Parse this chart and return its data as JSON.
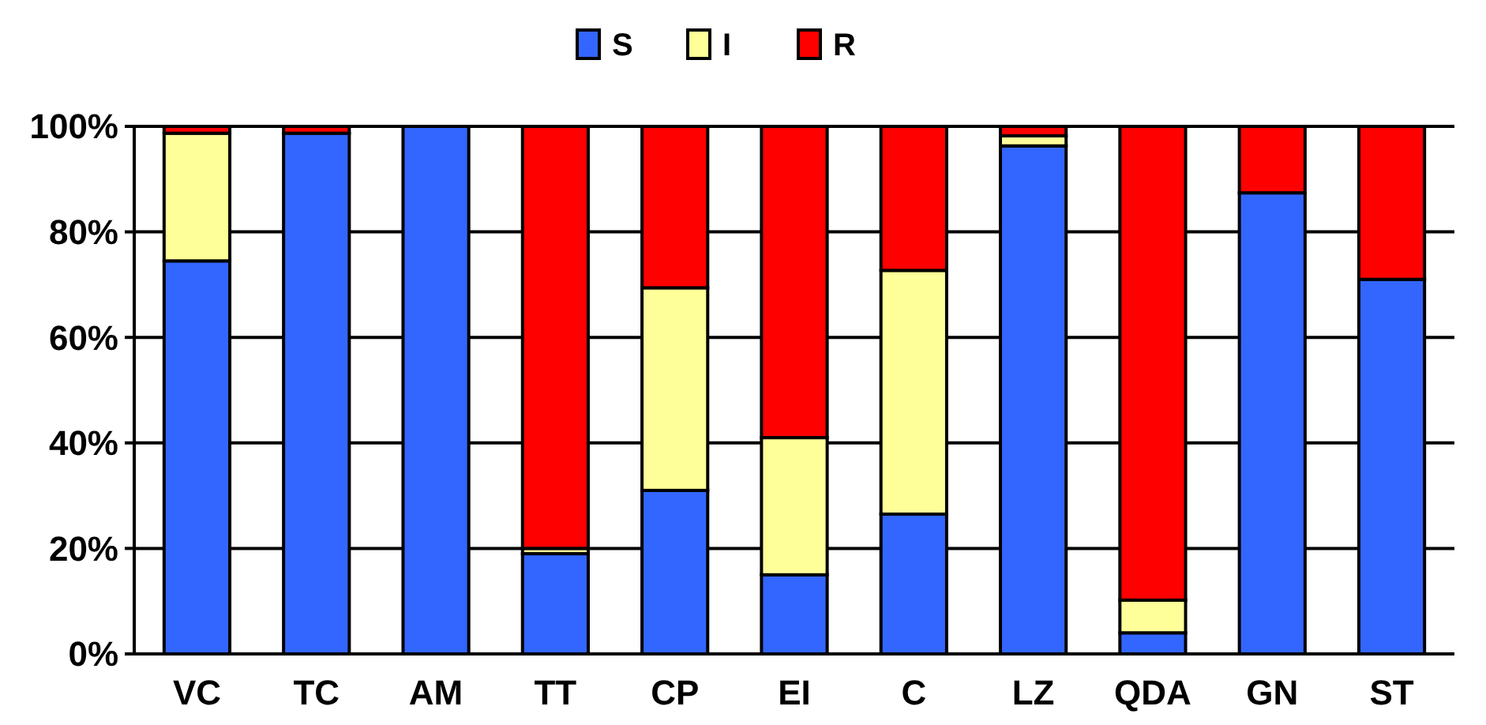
{
  "chart_data": {
    "type": "bar",
    "stacked": true,
    "categories": [
      "VC",
      "TC",
      "AM",
      "TT",
      "CP",
      "EI",
      "C",
      "LZ",
      "QDA",
      "GN",
      "ST"
    ],
    "series": [
      {
        "name": "S",
        "color": "#3366ff",
        "values": [
          74.5,
          98.7,
          100,
          19,
          31,
          15,
          26.5,
          96.3,
          4,
          87.4,
          71
        ]
      },
      {
        "name": "I",
        "color": "#ffff99",
        "values": [
          24.2,
          0,
          0,
          1,
          38.4,
          26,
          46.2,
          1.9,
          6.2,
          0,
          0
        ]
      },
      {
        "name": "R",
        "color": "#ff0000",
        "values": [
          1.3,
          1.3,
          0,
          80,
          30.6,
          59,
          27.3,
          1.8,
          89.8,
          12.6,
          29
        ]
      }
    ],
    "ylim": [
      0,
      100
    ],
    "yticks": [
      {
        "value": 0,
        "label": "0%"
      },
      {
        "value": 20,
        "label": "20%"
      },
      {
        "value": 40,
        "label": "40%"
      },
      {
        "value": 60,
        "label": "60%"
      },
      {
        "value": 80,
        "label": "80%"
      },
      {
        "value": 100,
        "label": "100%"
      }
    ],
    "grid": "y",
    "legend": "top"
  }
}
